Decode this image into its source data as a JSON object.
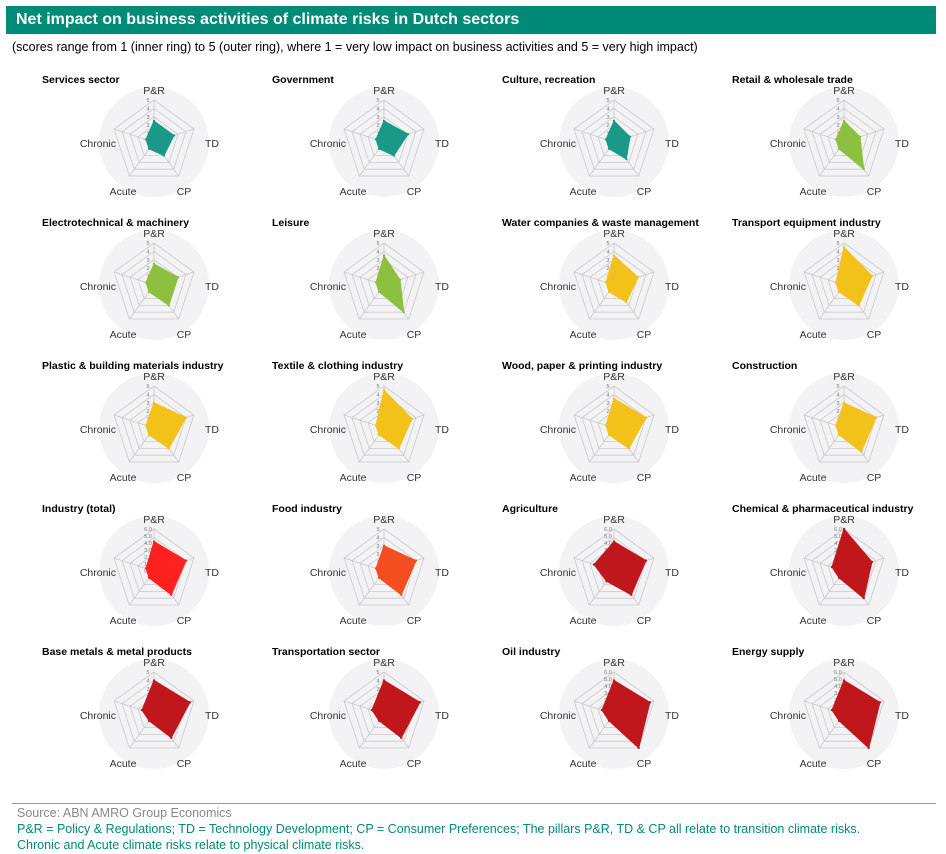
{
  "title": "Net impact on business activities of climate risks in Dutch sectors",
  "subtitle": "(scores range from 1 (inner ring) to 5 (outer ring), where 1 = very low impact on business activities and 5 = very high impact)",
  "source": "Source: ABN AMRO Group Economics",
  "note_line1": "P&R = Policy & Regulations; TD = Technology Development; CP = Consumer Preferences; The pillars P&R, TD & CP all relate to transition climate risks.",
  "note_line2": "Chronic and Acute climate risks relate to physical climate risks.",
  "colors": {
    "teal": "#1a9a86",
    "green": "#8dc03f",
    "yellow": "#f2c21b",
    "red": "#ff2020",
    "orange": "#f44d1f",
    "darkred": "#c0171d",
    "title_bar": "#008a78",
    "ring_bg": "#f3f3f6"
  },
  "chart_data": [
    {
      "type": "radar",
      "title": "Services sector",
      "axes": [
        "P&R",
        "TD",
        "CP",
        "Acute",
        "Chronic"
      ],
      "ticks": [
        "5",
        "4",
        "3",
        "2",
        "1",
        "0"
      ],
      "values": [
        2.5,
        2.5,
        2,
        1,
        1
      ],
      "color": "teal"
    },
    {
      "type": "radar",
      "title": "Government",
      "axes": [
        "P&R",
        "TD",
        "CP",
        "Acute",
        "Chronic"
      ],
      "ticks": [
        "5",
        "4",
        "3",
        "2",
        "1",
        "0"
      ],
      "values": [
        2.5,
        3,
        2,
        1,
        1
      ],
      "color": "teal"
    },
    {
      "type": "radar",
      "title": "Culture, recreation",
      "axes": [
        "P&R",
        "TD",
        "CP",
        "Acute",
        "Chronic"
      ],
      "ticks": [
        "5",
        "4",
        "3",
        "2",
        "1",
        "0"
      ],
      "values": [
        2.5,
        2,
        2.5,
        1,
        1
      ],
      "color": "teal"
    },
    {
      "type": "radar",
      "title": "Retail & wholesale trade",
      "axes": [
        "P&R",
        "TD",
        "CP",
        "Acute",
        "Chronic"
      ],
      "ticks": [
        "5",
        "4",
        "3",
        "2",
        "1",
        "0"
      ],
      "values": [
        2.5,
        2,
        4,
        1,
        1
      ],
      "color": "green"
    },
    {
      "type": "radar",
      "title": "Electrotechnical & machinery",
      "axes": [
        "P&R",
        "TD",
        "CP",
        "Acute",
        "Chronic"
      ],
      "ticks": [
        "5",
        "4",
        "3",
        "2",
        "1",
        "0"
      ],
      "values": [
        2.5,
        3,
        3,
        1,
        1
      ],
      "color": "green"
    },
    {
      "type": "radar",
      "title": "Leisure",
      "axes": [
        "P&R",
        "TD",
        "CP",
        "Acute",
        "Chronic"
      ],
      "ticks": [
        "5",
        "4",
        "3",
        "2",
        "1",
        "0"
      ],
      "values": [
        3.5,
        2,
        4,
        1,
        1
      ],
      "color": "green"
    },
    {
      "type": "radar",
      "title": "Water companies & waste management",
      "axes": [
        "P&R",
        "TD",
        "CP",
        "Acute",
        "Chronic"
      ],
      "ticks": [
        "5",
        "4",
        "3",
        "2",
        "1",
        "0"
      ],
      "values": [
        3.5,
        3,
        2.5,
        1,
        1
      ],
      "color": "yellow"
    },
    {
      "type": "radar",
      "title": "Transport equipment industry",
      "axes": [
        "P&R",
        "TD",
        "CP",
        "Acute",
        "Chronic"
      ],
      "ticks": [
        "5",
        "4",
        "3",
        "2",
        "1",
        "0"
      ],
      "values": [
        4.5,
        3.5,
        3,
        1,
        1
      ],
      "color": "yellow"
    },
    {
      "type": "radar",
      "title": "Plastic & building materials industry",
      "axes": [
        "P&R",
        "TD",
        "CP",
        "Acute",
        "Chronic"
      ],
      "ticks": [
        "5",
        "4",
        "3",
        "2",
        "1",
        "0"
      ],
      "values": [
        3,
        4,
        3,
        1,
        1
      ],
      "color": "yellow"
    },
    {
      "type": "radar",
      "title": "Textile & clothing industry",
      "axes": [
        "P&R",
        "TD",
        "CP",
        "Acute",
        "Chronic"
      ],
      "ticks": [
        "5",
        "4",
        "3",
        "2",
        "1",
        "0"
      ],
      "values": [
        4.5,
        3.5,
        3,
        1,
        1
      ],
      "color": "yellow"
    },
    {
      "type": "radar",
      "title": "Wood, paper & printing industry",
      "axes": [
        "P&R",
        "TD",
        "CP",
        "Acute",
        "Chronic"
      ],
      "ticks": [
        "5",
        "4",
        "3",
        "2",
        "1",
        "0"
      ],
      "values": [
        3.5,
        4,
        3,
        1,
        1
      ],
      "color": "yellow"
    },
    {
      "type": "radar",
      "title": "Construction",
      "axes": [
        "P&R",
        "TD",
        "CP",
        "Acute",
        "Chronic"
      ],
      "ticks": [
        "5",
        "4",
        "3",
        "2",
        "1",
        "0"
      ],
      "values": [
        3,
        4,
        3.5,
        1,
        1
      ],
      "color": "yellow"
    },
    {
      "type": "radar",
      "title": "Industry (total)",
      "axes": [
        "P&R",
        "TD",
        "CP",
        "Acute",
        "Chronic"
      ],
      "ticks": [
        "6,0",
        "5,0",
        "4,0",
        "3,0",
        "2,0",
        "1,0",
        "0,0"
      ],
      "values": [
        3.5,
        4,
        3.5,
        1,
        1
      ],
      "color": "red"
    },
    {
      "type": "radar",
      "title": "Food industry",
      "axes": [
        "P&R",
        "TD",
        "CP",
        "Acute",
        "Chronic"
      ],
      "ticks": [
        "5",
        "4",
        "3",
        "2",
        "1",
        "0"
      ],
      "values": [
        3,
        4,
        3.5,
        1,
        1
      ],
      "color": "orange"
    },
    {
      "type": "radar",
      "title": "Agriculture",
      "axes": [
        "P&R",
        "TD",
        "CP",
        "Acute",
        "Chronic"
      ],
      "ticks": [
        "6,0",
        "5,0",
        "4,0",
        "3,0",
        "2,0",
        "1,0",
        "0,0"
      ],
      "values": [
        3.5,
        4,
        3.5,
        1.5,
        2.5
      ],
      "color": "darkred"
    },
    {
      "type": "radar",
      "title": "Chemical & pharmaceutical industry",
      "axes": [
        "P&R",
        "TD",
        "CP",
        "Acute",
        "Chronic"
      ],
      "ticks": [
        "6,0",
        "5,0",
        "4,0",
        "3,0",
        "2,0",
        "1,0",
        "0,0"
      ],
      "values": [
        5,
        3.5,
        4,
        1,
        1.5
      ],
      "color": "darkred"
    },
    {
      "type": "radar",
      "title": "Base metals & metal products",
      "axes": [
        "P&R",
        "TD",
        "CP",
        "Acute",
        "Chronic"
      ],
      "ticks": [
        "5",
        "4",
        "3",
        "2",
        "1",
        "0"
      ],
      "values": [
        4,
        4.5,
        3.5,
        1,
        1.5
      ],
      "color": "darkred"
    },
    {
      "type": "radar",
      "title": "Transportation sector",
      "axes": [
        "P&R",
        "TD",
        "CP",
        "Acute",
        "Chronic"
      ],
      "ticks": [
        "5",
        "4",
        "3",
        "2",
        "1",
        "0"
      ],
      "values": [
        4,
        4.5,
        3.5,
        1,
        1.5
      ],
      "color": "darkred"
    },
    {
      "type": "radar",
      "title": "Oil industry",
      "axes": [
        "P&R",
        "TD",
        "CP",
        "Acute",
        "Chronic"
      ],
      "ticks": [
        "6,0",
        "5,0",
        "4,0",
        "3,0",
        "2,0",
        "1,0",
        "0,0"
      ],
      "values": [
        4,
        4.5,
        5,
        1,
        1.5
      ],
      "color": "darkred"
    },
    {
      "type": "radar",
      "title": "Energy supply",
      "axes": [
        "P&R",
        "TD",
        "CP",
        "Acute",
        "Chronic"
      ],
      "ticks": [
        "6,0",
        "5,0",
        "4,0",
        "3,0",
        "2,0",
        "1,0",
        "0,0"
      ],
      "values": [
        4,
        4.5,
        5,
        1,
        1.5
      ],
      "color": "darkred"
    }
  ]
}
